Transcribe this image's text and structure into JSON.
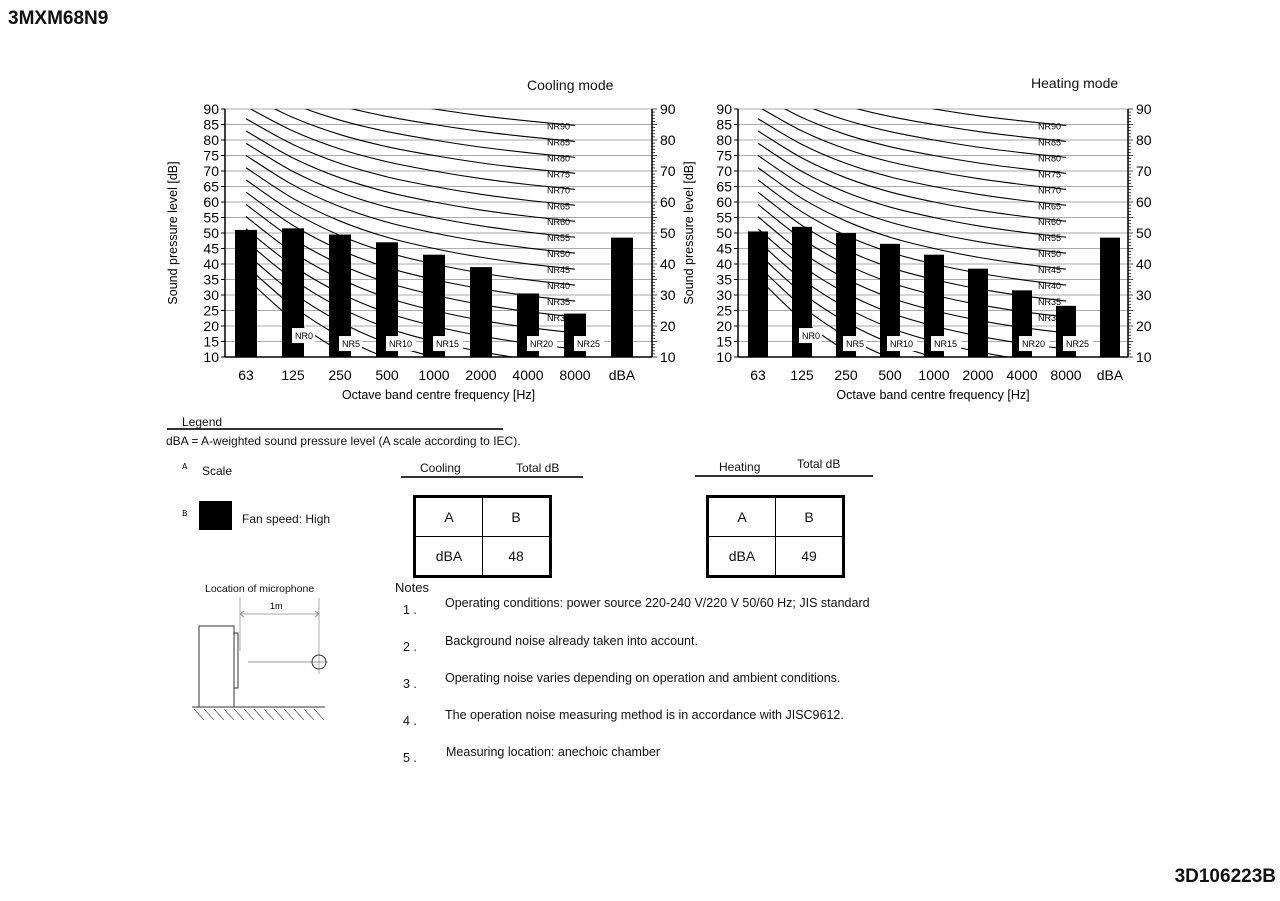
{
  "header": {
    "model": "3MXM68N9",
    "document_id": "3D106223B"
  },
  "legend": {
    "title": "Legend",
    "dba_definition": "dBA = A-weighted sound pressure level (A scale according to IEC).",
    "a_marker": "A",
    "a_label": "Scale",
    "b_marker": "B",
    "b_label": "Fan speed: High",
    "b_color": "#000000"
  },
  "totals": [
    {
      "mode": "Cooling",
      "header": "Total dB",
      "col_a": "A",
      "col_b": "B",
      "row_a": "dBA",
      "row_b": "48"
    },
    {
      "mode": "Heating",
      "header": "Total dB",
      "col_a": "A",
      "col_b": "B",
      "row_a": "dBA",
      "row_b": "49"
    }
  ],
  "microphone": {
    "title": "Location of microphone",
    "distance": "1m"
  },
  "notes": {
    "title": "Notes",
    "items": [
      {
        "num": "1 .",
        "text": "Operating conditions: power source 220-240 V/220 V 50/60 Hz; JIS standard"
      },
      {
        "num": "2 .",
        "text": "Background noise already taken into account."
      },
      {
        "num": "3 .",
        "text": "Operating noise varies depending on operation and ambient conditions."
      },
      {
        "num": "4 .",
        "text": "The operation noise measuring method is in accordance with JISC9612."
      },
      {
        "num": "5 .",
        "text": "Measuring location: anechoic chamber"
      }
    ]
  },
  "chart_data": [
    {
      "type": "bar",
      "title": "Cooling mode",
      "xlabel": "Octave band centre frequency [Hz]",
      "ylabel": "Sound pressure level [dB]",
      "categories": [
        "63",
        "125",
        "250",
        "500",
        "1000",
        "2000",
        "4000",
        "8000",
        "dBA"
      ],
      "values": [
        51,
        51.5,
        49.5,
        47,
        43,
        39,
        30.5,
        24,
        48.5
      ],
      "ylim": [
        10,
        90
      ],
      "yticks_left": [
        "10",
        "15",
        "20",
        "25",
        "30",
        "35",
        "40",
        "45",
        "50",
        "55",
        "60",
        "65",
        "70",
        "75",
        "80",
        "85",
        "90"
      ],
      "yticks_right": [
        "10",
        "20",
        "30",
        "40",
        "50",
        "60",
        "70",
        "80",
        "90"
      ],
      "grid": true,
      "bar_color": "#000000",
      "nr_curves": [
        "NR0",
        "NR5",
        "NR10",
        "NR15",
        "NR20",
        "NR25",
        "NR30",
        "NR35",
        "NR40",
        "NR45",
        "NR50",
        "NR55",
        "NR60",
        "NR65",
        "NR70",
        "NR75",
        "NR80",
        "NR85",
        "NR90"
      ]
    },
    {
      "type": "bar",
      "title": "Heating mode",
      "xlabel": "Octave band centre frequency [Hz]",
      "ylabel": "Sound pressure level [dB]",
      "categories": [
        "63",
        "125",
        "250",
        "500",
        "1000",
        "2000",
        "4000",
        "8000",
        "dBA"
      ],
      "values": [
        50.5,
        52,
        50,
        46.5,
        43,
        38.5,
        31.5,
        26.5,
        48.5
      ],
      "ylim": [
        10,
        90
      ],
      "yticks_left": [
        "10",
        "15",
        "20",
        "25",
        "30",
        "35",
        "40",
        "45",
        "50",
        "55",
        "60",
        "65",
        "70",
        "75",
        "80",
        "85",
        "90"
      ],
      "yticks_right": [
        "10",
        "20",
        "30",
        "40",
        "50",
        "60",
        "70",
        "80",
        "90"
      ],
      "grid": true,
      "bar_color": "#000000",
      "nr_curves": [
        "NR0",
        "NR5",
        "NR10",
        "NR15",
        "NR20",
        "NR25",
        "NR30",
        "NR35",
        "NR40",
        "NR45",
        "NR50",
        "NR55",
        "NR60",
        "NR65",
        "NR70",
        "NR75",
        "NR80",
        "NR85",
        "NR90"
      ]
    }
  ]
}
